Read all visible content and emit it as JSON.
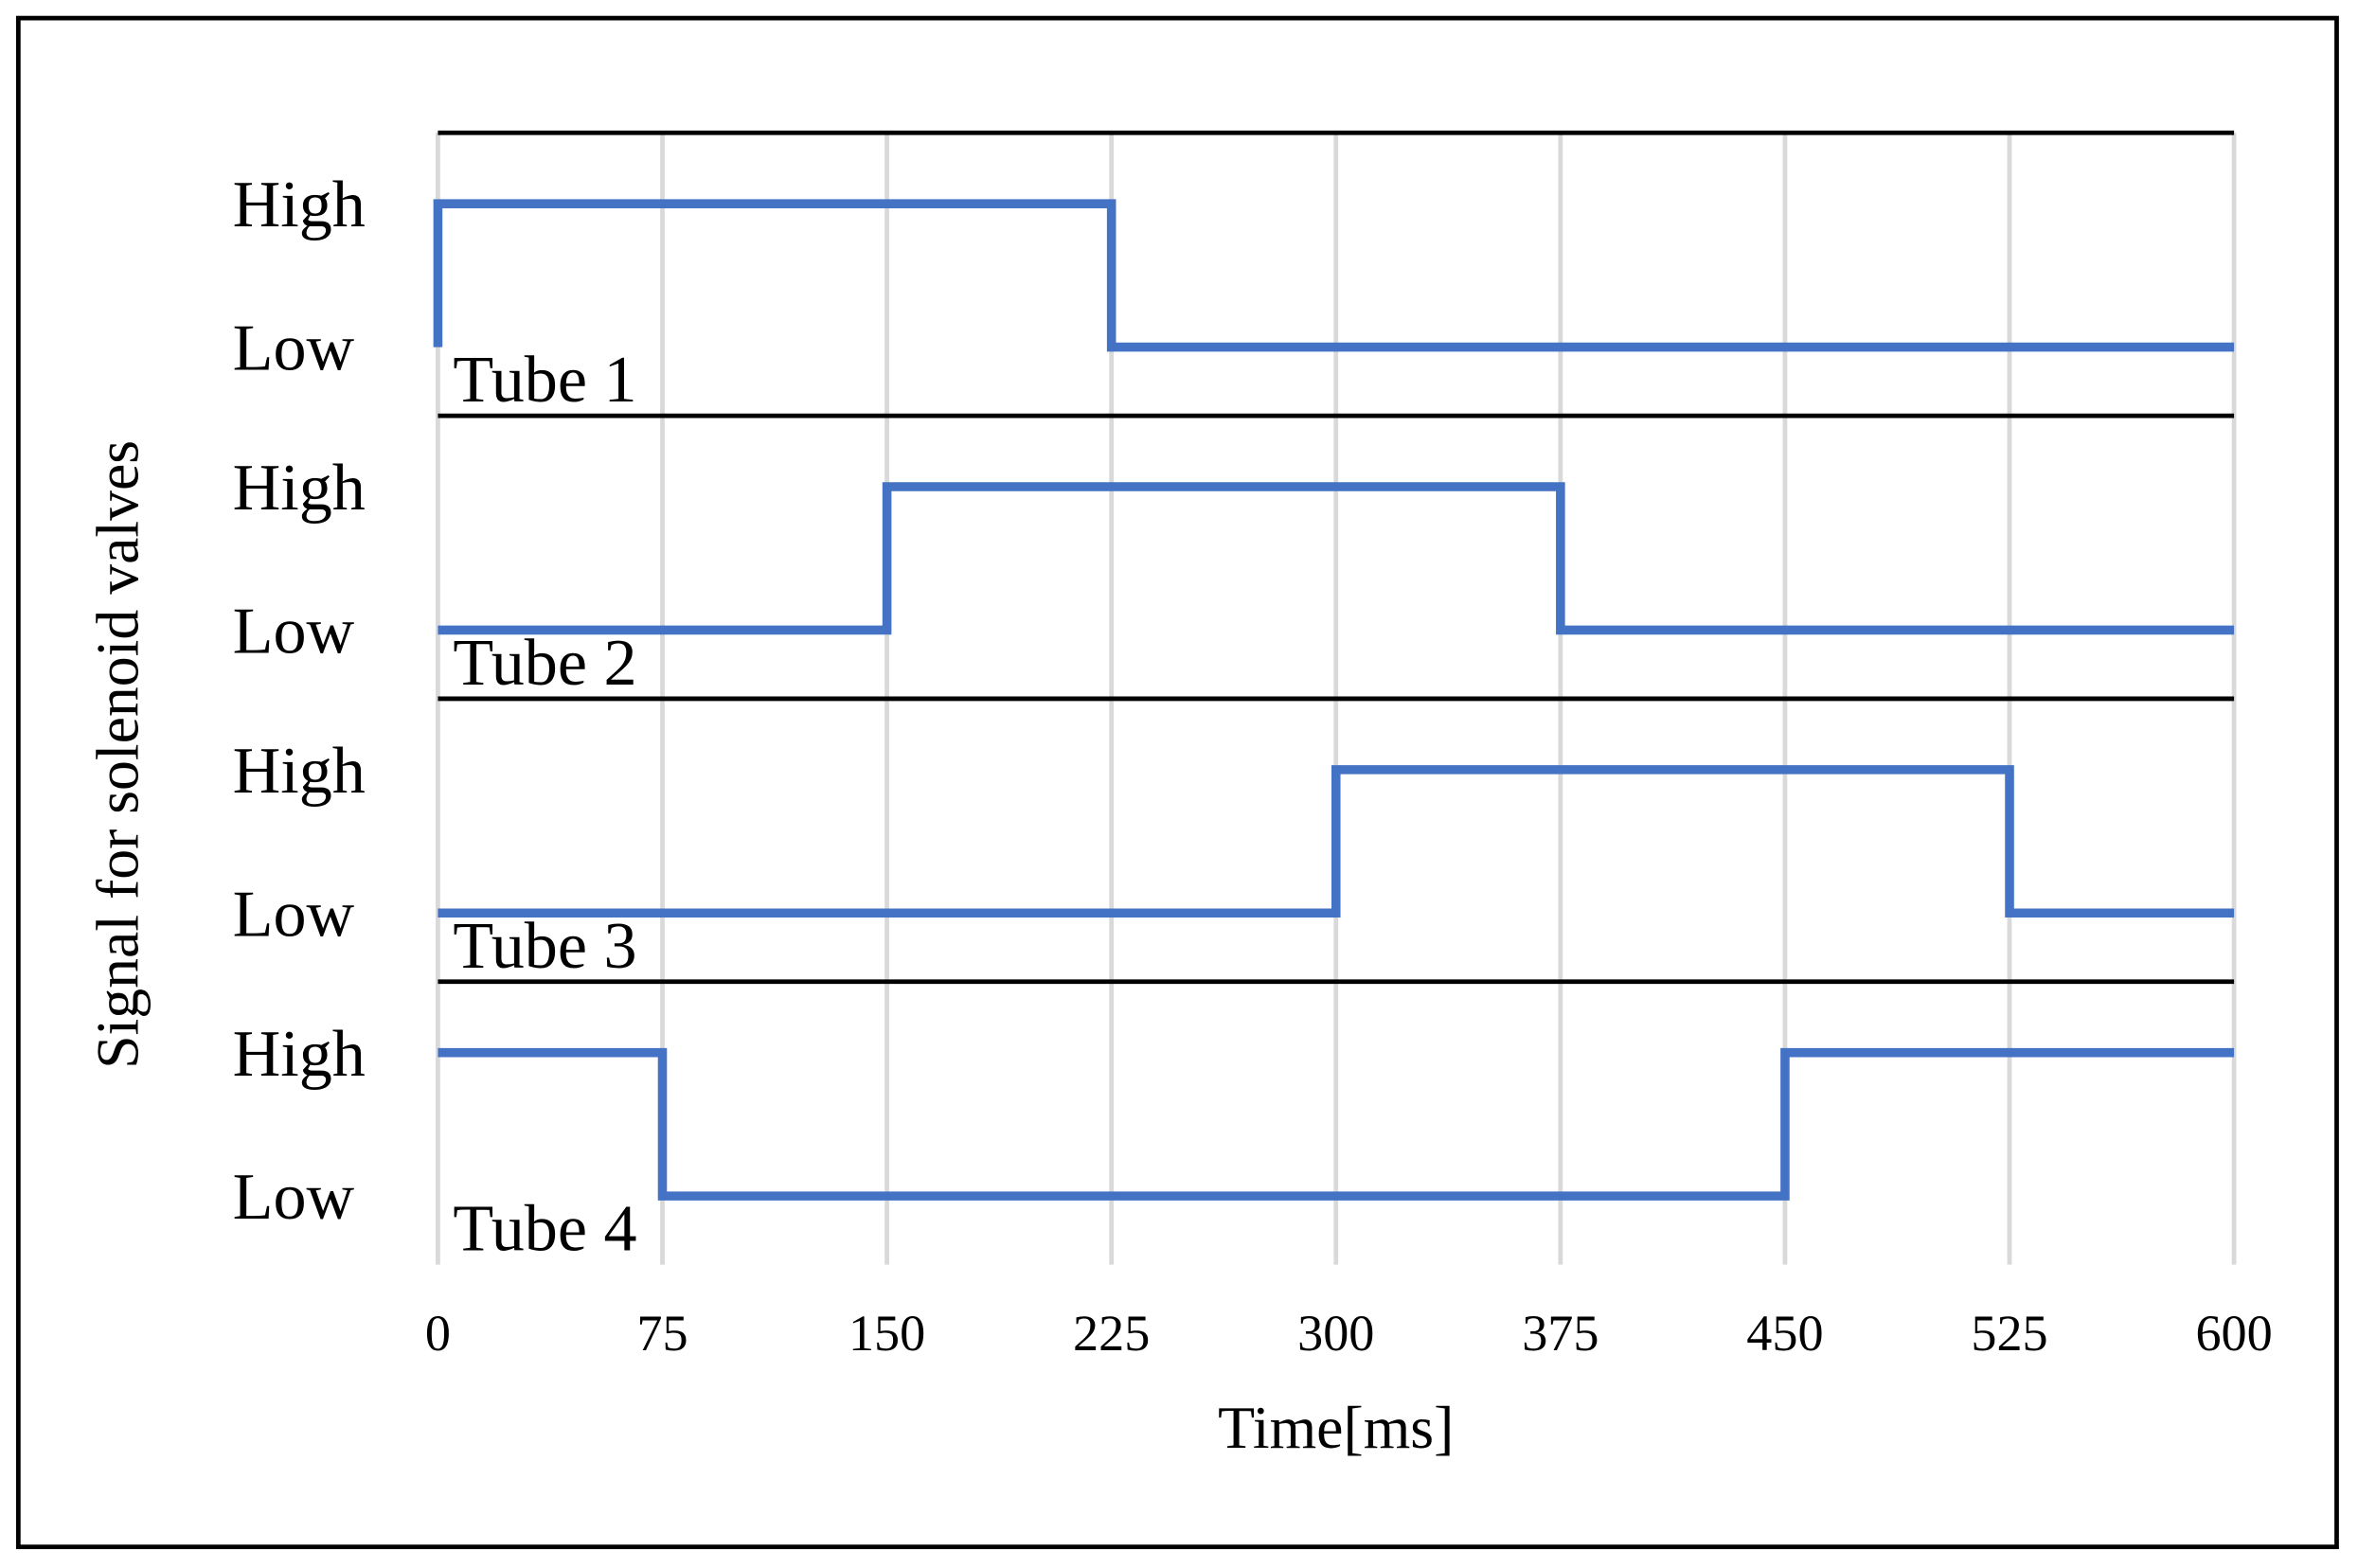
{
  "chart_data": {
    "type": "line",
    "x_label": "Time[ms]",
    "y_label": "Signal for solenoid valves",
    "xlim": [
      0,
      600
    ],
    "xticks": [
      0,
      75,
      150,
      225,
      300,
      375,
      450,
      525,
      600
    ],
    "ylim": [
      0,
      1
    ],
    "yticks": [
      {
        "value": 0,
        "label": "Low"
      },
      {
        "value": 1,
        "label": "High"
      }
    ],
    "grid": true,
    "series": [
      {
        "name": "Tube 1",
        "color": "#4472c4",
        "x": [
          0,
          0,
          225,
          225,
          600
        ],
        "values": [
          0,
          1,
          1,
          0,
          0
        ]
      },
      {
        "name": "Tube 2",
        "color": "#4472c4",
        "x": [
          0,
          150,
          150,
          375,
          375,
          600
        ],
        "values": [
          0,
          0,
          1,
          1,
          0,
          0
        ]
      },
      {
        "name": "Tube 3",
        "color": "#4472c4",
        "x": [
          0,
          300,
          300,
          525,
          525,
          600
        ],
        "values": [
          0,
          0,
          1,
          1,
          0,
          0
        ]
      },
      {
        "name": "Tube 4",
        "color": "#4472c4",
        "x": [
          0,
          75,
          75,
          450,
          450,
          600
        ],
        "values": [
          1,
          1,
          0,
          0,
          1,
          1
        ]
      }
    ]
  }
}
